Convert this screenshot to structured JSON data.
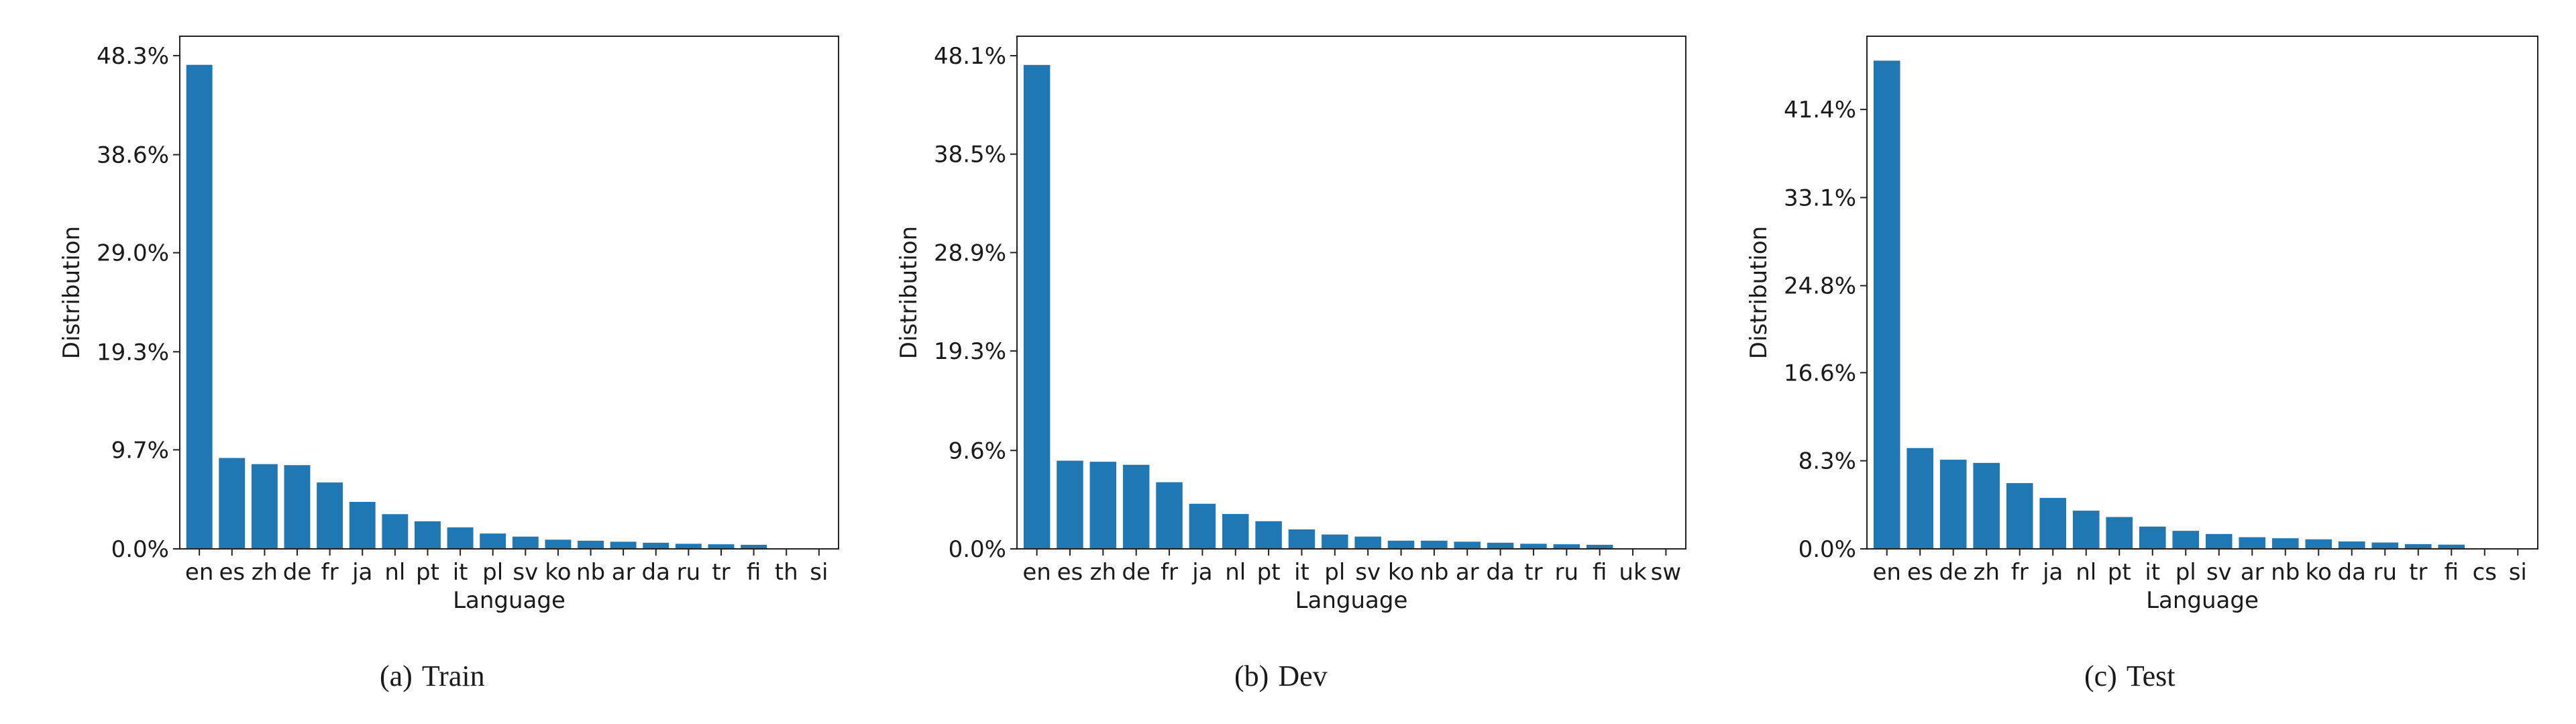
{
  "figure": {
    "colors": {
      "bar": "#1f77b4",
      "axis": "#222222"
    },
    "panels": [
      {
        "caption_tag": "(a)",
        "caption_name": "Train"
      },
      {
        "caption_tag": "(b)",
        "caption_name": "Dev"
      },
      {
        "caption_tag": "(c)",
        "caption_name": "Test"
      }
    ]
  },
  "chart_data": [
    {
      "type": "bar",
      "title": "",
      "xlabel": "Language",
      "ylabel": "Distribution",
      "ylim": [
        0,
        50.2
      ],
      "yticks": [
        "0.0%",
        "9.7%",
        "19.3%",
        "29.0%",
        "38.6%",
        "48.3%"
      ],
      "ytick_values": [
        0,
        9.7,
        19.3,
        29.0,
        38.6,
        48.3
      ],
      "categories": [
        "en",
        "es",
        "zh",
        "de",
        "fr",
        "ja",
        "nl",
        "pt",
        "it",
        "pl",
        "sv",
        "ko",
        "nb",
        "ar",
        "da",
        "ru",
        "tr",
        "fi",
        "th",
        "si"
      ],
      "values": [
        47.4,
        8.9,
        8.3,
        8.2,
        6.5,
        4.6,
        3.4,
        2.7,
        2.1,
        1.5,
        1.2,
        0.9,
        0.8,
        0.7,
        0.6,
        0.5,
        0.45,
        0.4,
        0.02,
        0.01
      ]
    },
    {
      "type": "bar",
      "title": "",
      "xlabel": "Language",
      "ylabel": "Distribution",
      "ylim": [
        0,
        50.0
      ],
      "yticks": [
        "0.0%",
        "9.6%",
        "19.3%",
        "28.9%",
        "38.5%",
        "48.1%"
      ],
      "ytick_values": [
        0,
        9.6,
        19.3,
        28.9,
        38.5,
        48.1
      ],
      "categories": [
        "en",
        "es",
        "zh",
        "de",
        "fr",
        "ja",
        "nl",
        "pt",
        "it",
        "pl",
        "sv",
        "ko",
        "nb",
        "ar",
        "da",
        "tr",
        "ru",
        "fi",
        "uk",
        "sw"
      ],
      "values": [
        47.2,
        8.6,
        8.5,
        8.2,
        6.5,
        4.4,
        3.4,
        2.7,
        1.9,
        1.4,
        1.2,
        0.8,
        0.8,
        0.7,
        0.6,
        0.5,
        0.45,
        0.4,
        0.02,
        0.01
      ]
    },
    {
      "type": "bar",
      "title": "",
      "xlabel": "Language",
      "ylabel": "Distribution",
      "ylim": [
        0,
        48.3
      ],
      "yticks": [
        "0.0%",
        "8.3%",
        "16.6%",
        "24.8%",
        "33.1%",
        "41.4%"
      ],
      "ytick_values": [
        0,
        8.3,
        16.6,
        24.8,
        33.1,
        41.4
      ],
      "categories": [
        "en",
        "es",
        "de",
        "zh",
        "fr",
        "ja",
        "nl",
        "pt",
        "it",
        "pl",
        "sv",
        "ar",
        "nb",
        "ko",
        "da",
        "ru",
        "tr",
        "fi",
        "cs",
        "si"
      ],
      "values": [
        46.0,
        9.5,
        8.4,
        8.1,
        6.2,
        4.8,
        3.6,
        3.0,
        2.1,
        1.7,
        1.4,
        1.1,
        1.0,
        0.9,
        0.7,
        0.6,
        0.45,
        0.4,
        0.02,
        0.01
      ]
    }
  ]
}
